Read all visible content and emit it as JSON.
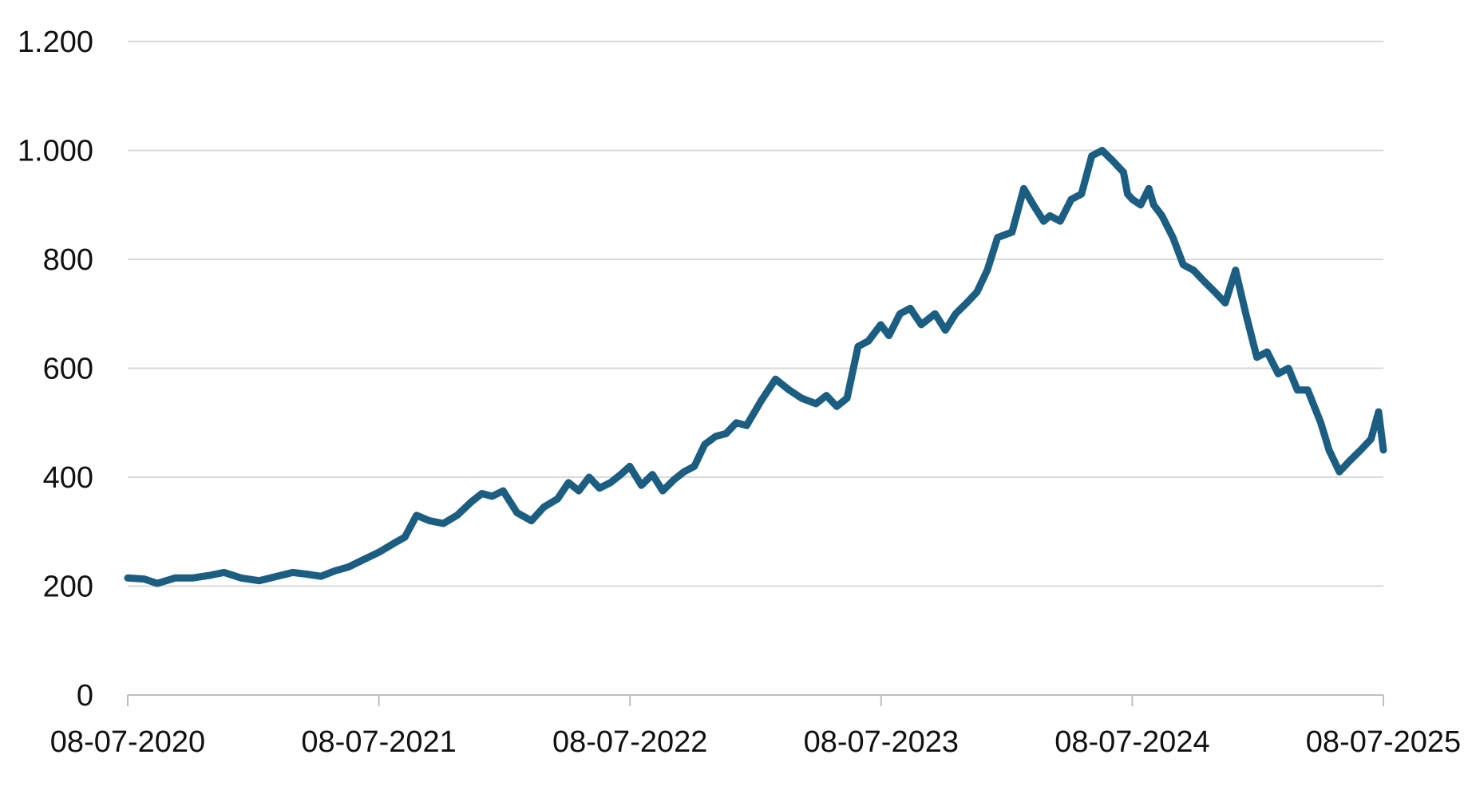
{
  "chart_data": {
    "type": "line",
    "title": "",
    "xlabel": "",
    "ylabel": "",
    "x_tick_labels": [
      "08-07-2020",
      "08-07-2021",
      "08-07-2022",
      "08-07-2023",
      "08-07-2024",
      "08-07-2025"
    ],
    "y_tick_labels": [
      "0",
      "200",
      "400",
      "600",
      "800",
      "1.000",
      "1.200"
    ],
    "y_ticks": [
      0,
      200,
      400,
      600,
      800,
      1000,
      1200
    ],
    "ylim": [
      0,
      1200
    ],
    "xlim": [
      "2020-07-08",
      "2025-07-08"
    ],
    "grid": "horizontal",
    "legend": "none",
    "colors": {
      "line": "#1b5e82",
      "grid": "#d9d9d9",
      "axis": "#bfbfbf",
      "text": "#111111"
    },
    "series": [
      {
        "x": [
          "2020-07-08",
          "2020-08-01",
          "2020-08-20",
          "2020-09-15",
          "2020-10-10",
          "2020-11-05",
          "2020-11-25",
          "2020-12-20",
          "2021-01-15",
          "2021-02-10",
          "2021-03-05",
          "2021-03-25",
          "2021-04-15",
          "2021-05-05",
          "2021-05-25",
          "2021-06-15",
          "2021-07-08",
          "2021-08-01",
          "2021-08-15",
          "2021-09-01",
          "2021-09-20",
          "2021-10-10",
          "2021-10-30",
          "2021-11-20",
          "2021-12-05",
          "2021-12-20",
          "2022-01-05",
          "2022-01-25",
          "2022-02-15",
          "2022-03-05",
          "2022-03-25",
          "2022-04-10",
          "2022-04-25",
          "2022-05-10",
          "2022-05-25",
          "2022-06-10",
          "2022-06-25",
          "2022-07-08",
          "2022-07-25",
          "2022-08-10",
          "2022-08-25",
          "2022-09-10",
          "2022-09-25",
          "2022-10-10",
          "2022-10-25",
          "2022-11-10",
          "2022-11-25",
          "2022-12-10",
          "2022-12-25",
          "2023-01-15",
          "2023-02-05",
          "2023-02-25",
          "2023-03-15",
          "2023-04-05",
          "2023-04-20",
          "2023-05-05",
          "2023-05-20",
          "2023-06-05",
          "2023-06-20",
          "2023-07-08",
          "2023-07-20",
          "2023-08-05",
          "2023-08-20",
          "2023-09-05",
          "2023-09-25",
          "2023-10-10",
          "2023-10-25",
          "2023-11-10",
          "2023-11-25",
          "2023-12-10",
          "2023-12-25",
          "2024-01-15",
          "2024-02-01",
          "2024-02-15",
          "2024-03-01",
          "2024-03-10",
          "2024-03-25",
          "2024-04-10",
          "2024-04-25",
          "2024-05-10",
          "2024-05-25",
          "2024-06-10",
          "2024-06-25",
          "2024-07-01",
          "2024-07-08",
          "2024-07-20",
          "2024-08-01",
          "2024-08-08",
          "2024-08-20",
          "2024-09-05",
          "2024-09-20",
          "2024-10-05",
          "2024-10-20",
          "2024-11-05",
          "2024-11-20",
          "2024-12-05",
          "2024-12-20",
          "2025-01-05",
          "2025-01-20",
          "2025-02-05",
          "2025-02-20",
          "2025-03-05",
          "2025-03-20",
          "2025-04-08",
          "2025-04-20",
          "2025-05-05",
          "2025-05-20",
          "2025-06-05",
          "2025-06-20",
          "2025-07-01",
          "2025-07-08"
        ],
        "y": [
          215,
          213,
          205,
          215,
          215,
          220,
          225,
          215,
          210,
          218,
          225,
          222,
          218,
          228,
          235,
          248,
          262,
          280,
          290,
          330,
          320,
          315,
          330,
          355,
          370,
          365,
          375,
          335,
          320,
          345,
          360,
          390,
          375,
          400,
          380,
          390,
          405,
          420,
          385,
          405,
          375,
          395,
          410,
          420,
          460,
          475,
          480,
          500,
          495,
          540,
          580,
          560,
          545,
          535,
          550,
          530,
          545,
          640,
          650,
          680,
          660,
          700,
          710,
          680,
          700,
          670,
          700,
          720,
          740,
          780,
          840,
          850,
          930,
          900,
          870,
          880,
          870,
          910,
          920,
          990,
          1000,
          980,
          960,
          920,
          910,
          900,
          930,
          900,
          880,
          840,
          790,
          780,
          760,
          740,
          720,
          780,
          700,
          620,
          630,
          590,
          600,
          560,
          560,
          500,
          450,
          410,
          430,
          450,
          470,
          520,
          450
        ]
      }
    ]
  }
}
